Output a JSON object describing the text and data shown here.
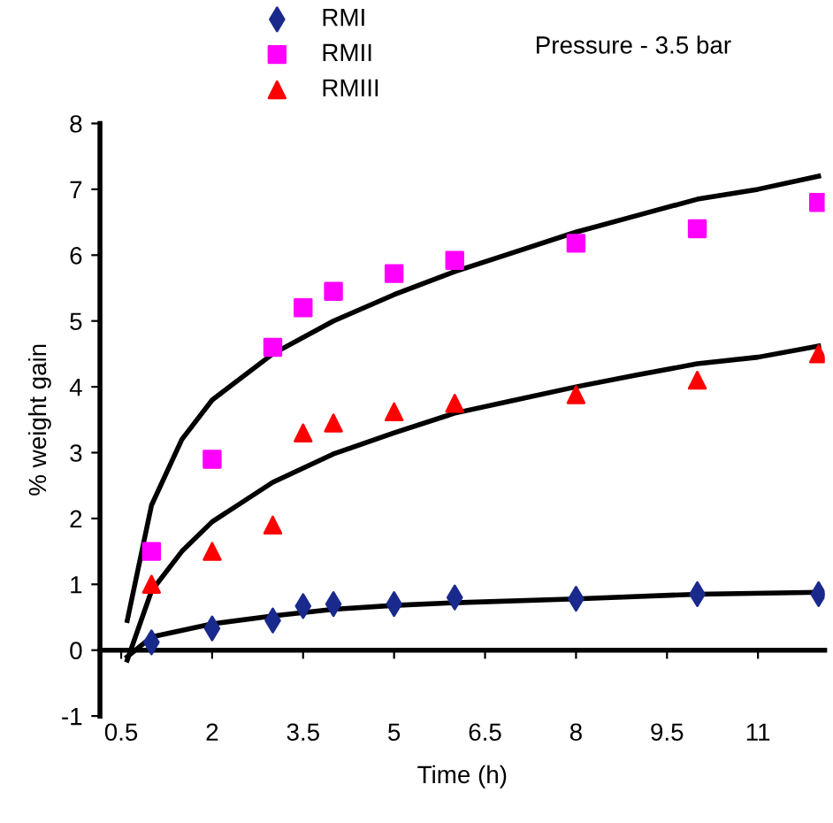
{
  "chart_data": {
    "type": "scatter",
    "title": "Pressure - 3.5 bar",
    "xlabel": "Time (h)",
    "ylabel": "% weight gain",
    "xlim": [
      0.15,
      12.1
    ],
    "ylim": [
      -1,
      8
    ],
    "xticks": [
      0.5,
      2,
      3.5,
      5,
      6.5,
      8,
      9.5,
      11
    ],
    "yticks": [
      -1,
      0,
      1,
      2,
      3,
      4,
      5,
      6,
      7,
      8
    ],
    "legend": "top left",
    "series": [
      {
        "name": "RMI",
        "color": "#1a2a8c",
        "marker": "diamond",
        "x": [
          1,
          2,
          3,
          3.5,
          4,
          5,
          6,
          8,
          10,
          12
        ],
        "values": [
          0.12,
          0.33,
          0.45,
          0.67,
          0.7,
          0.7,
          0.8,
          0.78,
          0.85,
          0.85
        ]
      },
      {
        "name": "RMII",
        "color": "#ff00ff",
        "marker": "square",
        "x": [
          1,
          2,
          3,
          3.5,
          4,
          5,
          6,
          8,
          10,
          12
        ],
        "values": [
          1.5,
          2.9,
          4.6,
          5.2,
          5.45,
          5.72,
          5.92,
          6.18,
          6.4,
          6.8
        ]
      },
      {
        "name": "RMIII",
        "color": "#ff0000",
        "marker": "triangle",
        "x": [
          1,
          2,
          3,
          3.5,
          4,
          5,
          6,
          8,
          10,
          12
        ],
        "values": [
          1.0,
          1.5,
          1.9,
          3.3,
          3.45,
          3.62,
          3.75,
          3.88,
          4.1,
          4.5
        ]
      },
      {
        "type": "line",
        "color": "#000000",
        "line_style": "solid",
        "x": [
          0.6,
          1,
          2,
          3,
          4,
          5,
          6,
          8,
          10,
          12
        ],
        "values": [
          -0.1,
          0.2,
          0.4,
          0.52,
          0.62,
          0.68,
          0.72,
          0.78,
          0.85,
          0.88
        ]
      },
      {
        "type": "line",
        "color": "#000000",
        "line_style": "solid",
        "x": [
          0.6,
          1,
          1.5,
          2,
          3,
          4,
          5,
          6,
          7,
          8,
          9,
          10,
          11,
          12
        ],
        "values": [
          0.45,
          2.2,
          3.2,
          3.8,
          4.5,
          5.0,
          5.4,
          5.75,
          6.05,
          6.35,
          6.6,
          6.85,
          7.0,
          7.2
        ]
      },
      {
        "type": "line",
        "color": "#000000",
        "line_style": "solid",
        "x": [
          0.6,
          1,
          1.5,
          2,
          3,
          4,
          5,
          6,
          7,
          8,
          9,
          10,
          11,
          12
        ],
        "values": [
          -0.15,
          0.9,
          1.5,
          1.95,
          2.55,
          2.98,
          3.3,
          3.6,
          3.8,
          4.0,
          4.18,
          4.35,
          4.45,
          4.62
        ]
      }
    ]
  }
}
